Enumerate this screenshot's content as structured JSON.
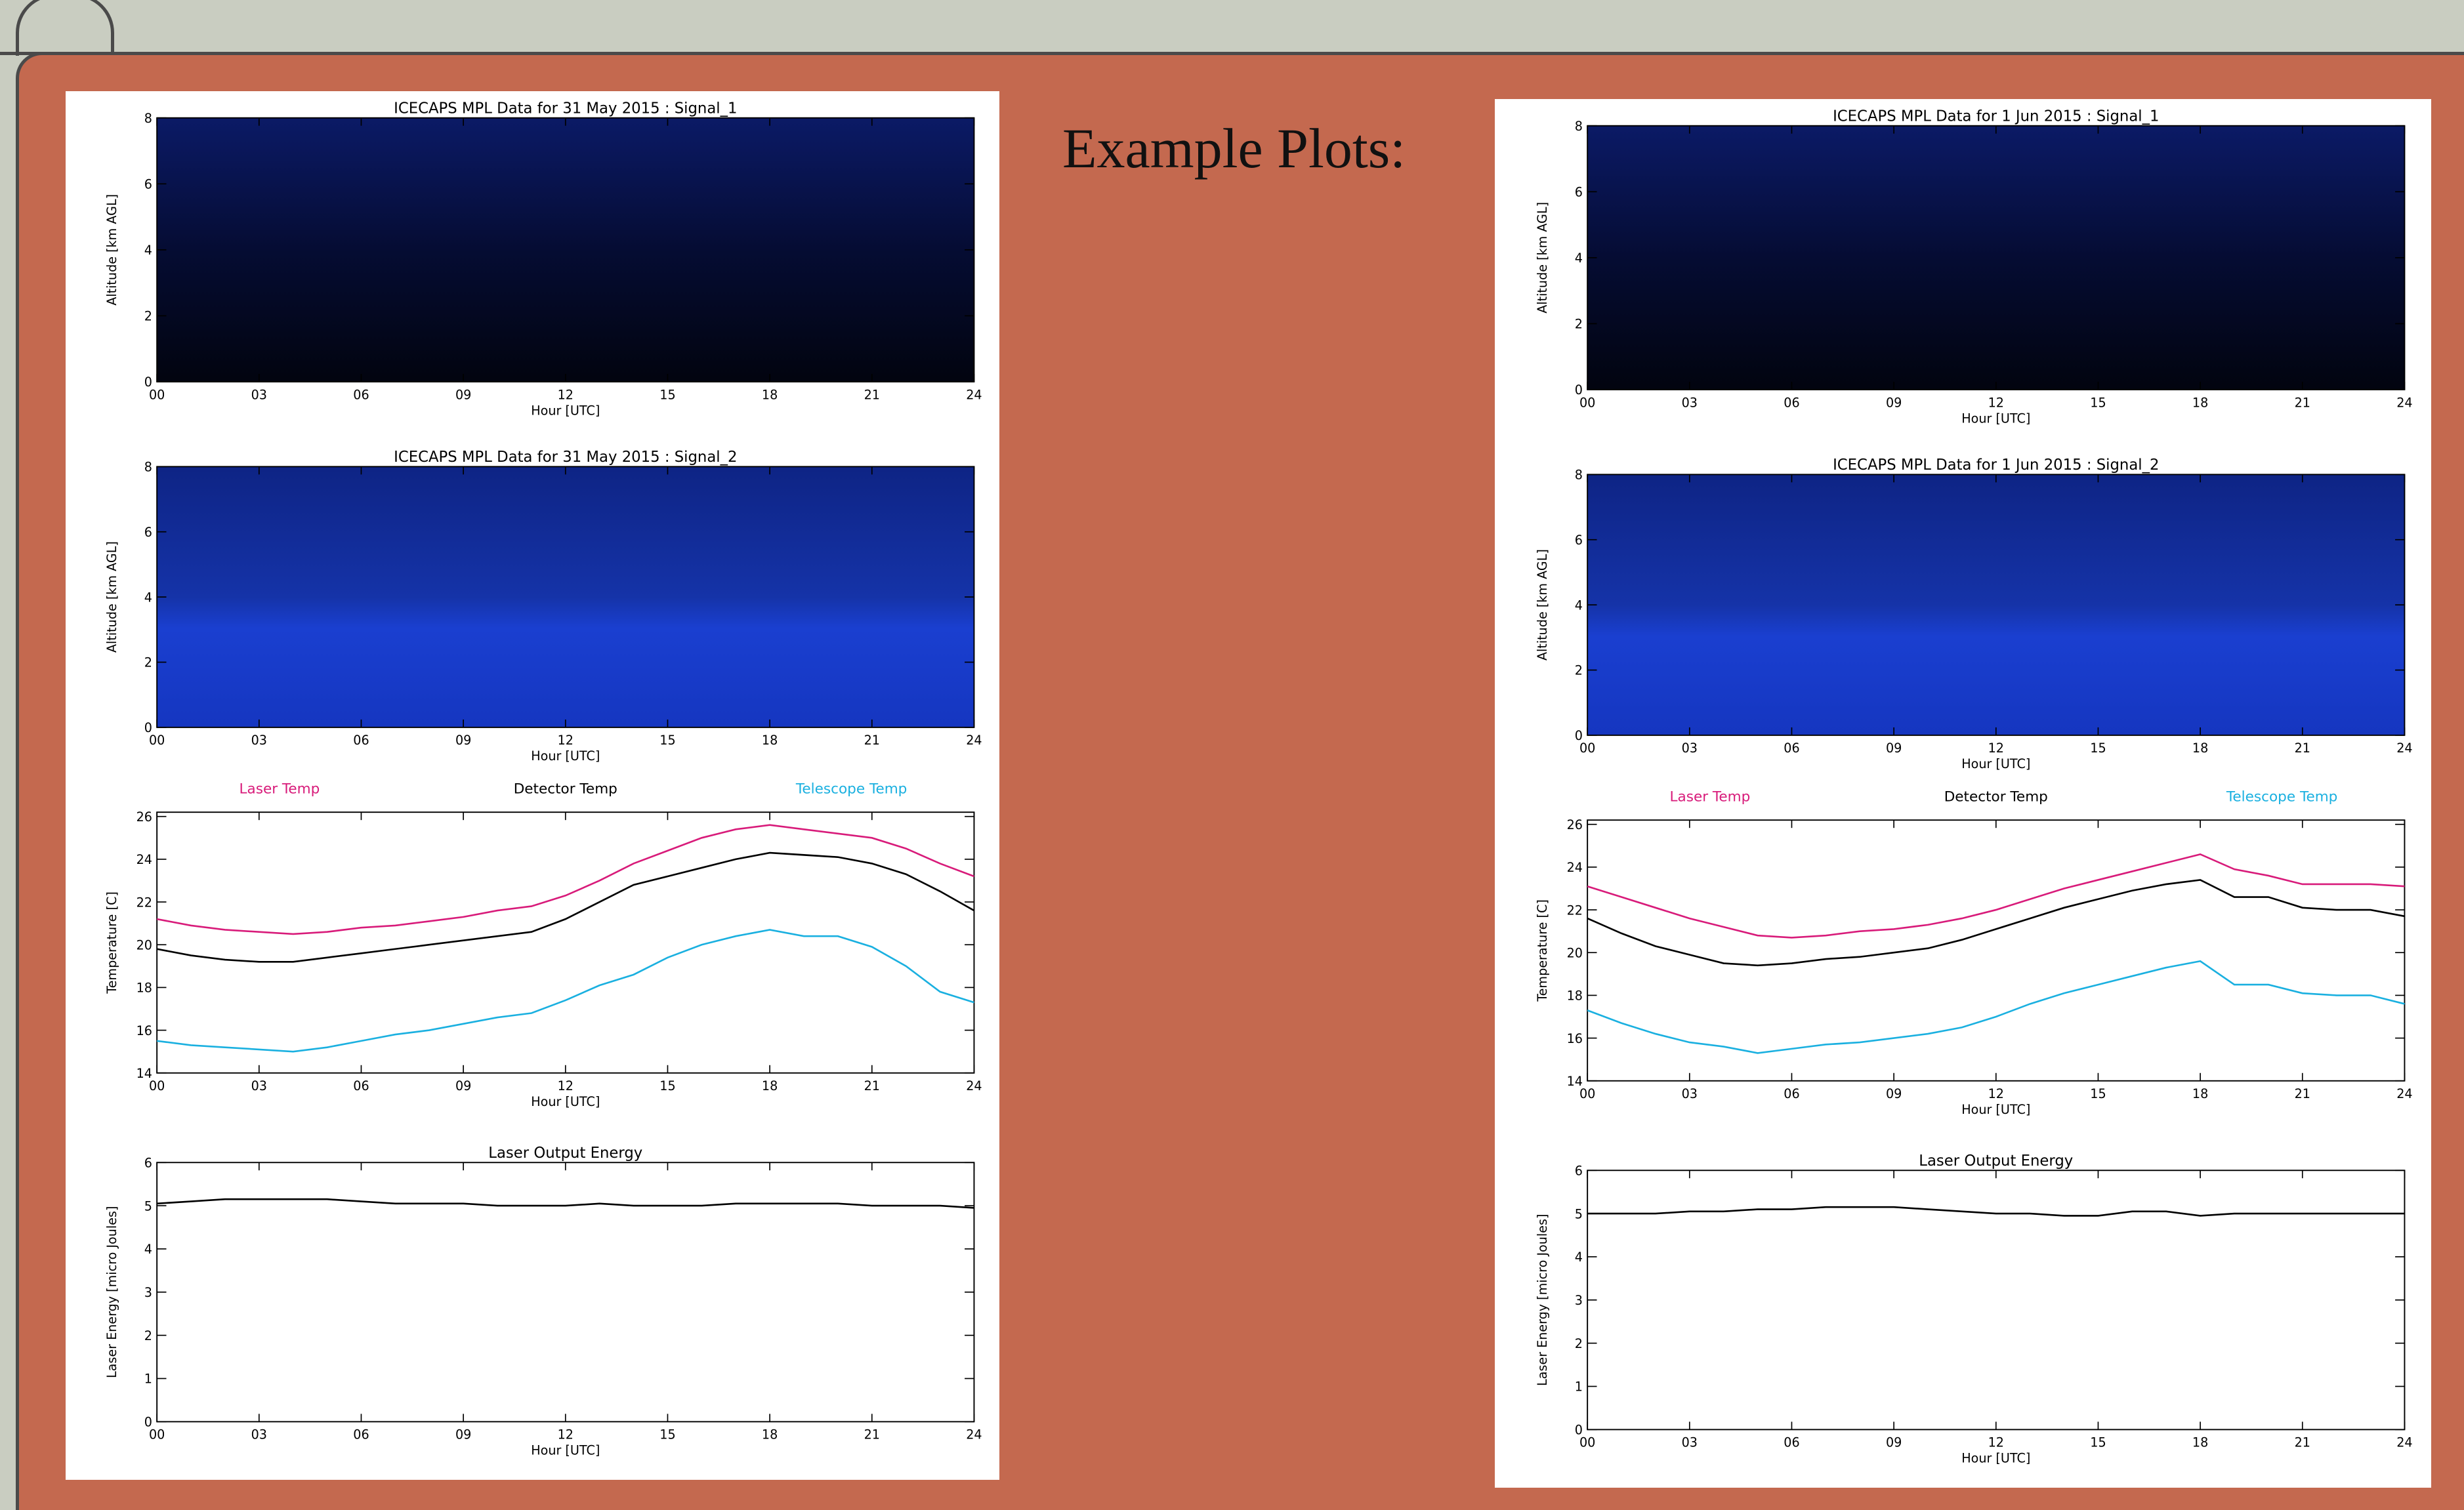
{
  "slide": {
    "heading": "Example Plots:"
  },
  "chart_data": [
    {
      "type": "heatmap",
      "title": "ICECAPS MPL Data for 31 May 2015 :  Signal_1",
      "x_label": "Hour [UTC]",
      "y_label": "Altitude [km AGL]",
      "xlim": [
        0,
        24
      ],
      "xticks": [
        {
          "value": 0,
          "label": "00"
        },
        {
          "value": 3,
          "label": "03"
        },
        {
          "value": 6,
          "label": "06"
        },
        {
          "value": 9,
          "label": "09"
        },
        12,
        15,
        18,
        21,
        24
      ],
      "ylim": [
        0,
        8
      ],
      "yticks": [
        0,
        2,
        4,
        6,
        8
      ]
    },
    {
      "type": "heatmap",
      "title": "ICECAPS MPL Data for 31 May 2015 :  Signal_2",
      "x_label": "Hour [UTC]",
      "y_label": "Altitude [km AGL]",
      "xlim": [
        0,
        24
      ],
      "xticks": [
        {
          "value": 0,
          "label": "00"
        },
        {
          "value": 3,
          "label": "03"
        },
        {
          "value": 6,
          "label": "06"
        },
        {
          "value": 9,
          "label": "09"
        },
        12,
        15,
        18,
        21,
        24
      ],
      "ylim": [
        0,
        8
      ],
      "yticks": [
        0,
        2,
        4,
        6,
        8
      ]
    },
    {
      "type": "line",
      "x_label": "Hour [UTC]",
      "y_label": "Temperature [C]",
      "xlim": [
        0,
        24
      ],
      "xticks": [
        {
          "value": 0,
          "label": "00"
        },
        {
          "value": 3,
          "label": "03"
        },
        {
          "value": 6,
          "label": "06"
        },
        {
          "value": 9,
          "label": "09"
        },
        12,
        15,
        18,
        21,
        24
      ],
      "ylim": [
        14,
        26.2
      ],
      "yticks": [
        14,
        16,
        18,
        20,
        22,
        24,
        26
      ],
      "x": [
        0,
        1,
        2,
        3,
        4,
        5,
        6,
        7,
        8,
        9,
        10,
        11,
        12,
        13,
        14,
        15,
        16,
        17,
        18,
        19,
        20,
        21,
        22,
        23,
        24
      ],
      "series": [
        {
          "name": "Laser Temp",
          "color": "#d81b7a",
          "values": [
            21.2,
            20.9,
            20.7,
            20.6,
            20.5,
            20.6,
            20.8,
            20.9,
            21.1,
            21.3,
            21.6,
            21.8,
            22.3,
            23.0,
            23.8,
            24.4,
            25.0,
            25.4,
            25.6,
            25.4,
            25.2,
            25.0,
            24.5,
            23.8,
            23.2
          ]
        },
        {
          "name": "Detector Temp",
          "color": "#000000",
          "values": [
            19.8,
            19.5,
            19.3,
            19.2,
            19.2,
            19.4,
            19.6,
            19.8,
            20.0,
            20.2,
            20.4,
            20.6,
            21.2,
            22.0,
            22.8,
            23.2,
            23.6,
            24.0,
            24.3,
            24.2,
            24.1,
            23.8,
            23.3,
            22.5,
            21.6
          ]
        },
        {
          "name": "Telescope Temp",
          "color": "#1ab0e0",
          "values": [
            15.5,
            15.3,
            15.2,
            15.1,
            15.0,
            15.2,
            15.5,
            15.8,
            16.0,
            16.3,
            16.6,
            16.8,
            17.4,
            18.1,
            18.6,
            19.4,
            20.0,
            20.4,
            20.7,
            20.4,
            20.4,
            19.9,
            19.0,
            17.8,
            17.3
          ]
        }
      ]
    },
    {
      "type": "line",
      "title": "Laser Output Energy",
      "x_label": "Hour [UTC]",
      "y_label": "Laser Energy [micro Joules]",
      "xlim": [
        0,
        24
      ],
      "xticks": [
        {
          "value": 0,
          "label": "00"
        },
        {
          "value": 3,
          "label": "03"
        },
        {
          "value": 6,
          "label": "06"
        },
        {
          "value": 9,
          "label": "09"
        },
        12,
        15,
        18,
        21,
        24
      ],
      "ylim": [
        0,
        6
      ],
      "yticks": [
        0,
        1,
        2,
        3,
        4,
        5,
        6
      ],
      "x": [
        0,
        1,
        2,
        3,
        4,
        5,
        6,
        7,
        8,
        9,
        10,
        11,
        12,
        13,
        14,
        15,
        16,
        17,
        18,
        19,
        20,
        21,
        22,
        23,
        24
      ],
      "series": [
        {
          "color": "#000000",
          "values": [
            5.05,
            5.1,
            5.15,
            5.15,
            5.15,
            5.15,
            5.1,
            5.05,
            5.05,
            5.05,
            5.0,
            5.0,
            5.0,
            5.05,
            5.0,
            5.0,
            5.0,
            5.05,
            5.05,
            5.05,
            5.05,
            5.0,
            5.0,
            5.0,
            4.95
          ]
        }
      ]
    },
    {
      "type": "heatmap",
      "title": "ICECAPS MPL Data for 1 Jun 2015 :  Signal_1",
      "x_label": "Hour [UTC]",
      "y_label": "Altitude [km AGL]",
      "xlim": [
        0,
        24
      ],
      "xticks": [
        {
          "value": 0,
          "label": "00"
        },
        {
          "value": 3,
          "label": "03"
        },
        {
          "value": 6,
          "label": "06"
        },
        {
          "value": 9,
          "label": "09"
        },
        12,
        15,
        18,
        21,
        24
      ],
      "ylim": [
        0,
        8
      ],
      "yticks": [
        0,
        2,
        4,
        6,
        8
      ]
    },
    {
      "type": "heatmap",
      "title": "ICECAPS MPL Data for 1 Jun 2015 :  Signal_2",
      "x_label": "Hour [UTC]",
      "y_label": "Altitude [km AGL]",
      "xlim": [
        0,
        24
      ],
      "xticks": [
        {
          "value": 0,
          "label": "00"
        },
        {
          "value": 3,
          "label": "03"
        },
        {
          "value": 6,
          "label": "06"
        },
        {
          "value": 9,
          "label": "09"
        },
        12,
        15,
        18,
        21,
        24
      ],
      "ylim": [
        0,
        8
      ],
      "yticks": [
        0,
        2,
        4,
        6,
        8
      ]
    },
    {
      "type": "line",
      "x_label": "Hour [UTC]",
      "y_label": "Temperature [C]",
      "xlim": [
        0,
        24
      ],
      "xticks": [
        {
          "value": 0,
          "label": "00"
        },
        {
          "value": 3,
          "label": "03"
        },
        {
          "value": 6,
          "label": "06"
        },
        {
          "value": 9,
          "label": "09"
        },
        12,
        15,
        18,
        21,
        24
      ],
      "ylim": [
        14,
        26.2
      ],
      "yticks": [
        14,
        16,
        18,
        20,
        22,
        24,
        26
      ],
      "x": [
        0,
        1,
        2,
        3,
        4,
        5,
        6,
        7,
        8,
        9,
        10,
        11,
        12,
        13,
        14,
        15,
        16,
        17,
        18,
        19,
        20,
        21,
        22,
        23,
        24
      ],
      "series": [
        {
          "name": "Laser Temp",
          "color": "#d81b7a",
          "values": [
            23.1,
            22.6,
            22.1,
            21.6,
            21.2,
            20.8,
            20.7,
            20.8,
            21.0,
            21.1,
            21.3,
            21.6,
            22.0,
            22.5,
            23.0,
            23.4,
            23.8,
            24.2,
            24.6,
            23.9,
            23.6,
            23.2,
            23.2,
            23.2,
            23.1
          ]
        },
        {
          "name": "Detector Temp",
          "color": "#000000",
          "values": [
            21.6,
            20.9,
            20.3,
            19.9,
            19.5,
            19.4,
            19.5,
            19.7,
            19.8,
            20.0,
            20.2,
            20.6,
            21.1,
            21.6,
            22.1,
            22.5,
            22.9,
            23.2,
            23.4,
            22.6,
            22.6,
            22.1,
            22.0,
            22.0,
            21.7
          ]
        },
        {
          "name": "Telescope Temp",
          "color": "#1ab0e0",
          "values": [
            17.3,
            16.7,
            16.2,
            15.8,
            15.6,
            15.3,
            15.5,
            15.7,
            15.8,
            16.0,
            16.2,
            16.5,
            17.0,
            17.6,
            18.1,
            18.5,
            18.9,
            19.3,
            19.6,
            18.5,
            18.5,
            18.1,
            18.0,
            18.0,
            17.6
          ]
        }
      ]
    },
    {
      "type": "line",
      "title": "Laser Output Energy",
      "x_label": "Hour [UTC]",
      "y_label": "Laser Energy [micro Joules]",
      "xlim": [
        0,
        24
      ],
      "xticks": [
        {
          "value": 0,
          "label": "00"
        },
        {
          "value": 3,
          "label": "03"
        },
        {
          "value": 6,
          "label": "06"
        },
        {
          "value": 9,
          "label": "09"
        },
        12,
        15,
        18,
        21,
        24
      ],
      "ylim": [
        0,
        6
      ],
      "yticks": [
        0,
        1,
        2,
        3,
        4,
        5,
        6
      ],
      "x": [
        0,
        1,
        2,
        3,
        4,
        5,
        6,
        7,
        8,
        9,
        10,
        11,
        12,
        13,
        14,
        15,
        16,
        17,
        18,
        19,
        20,
        21,
        22,
        23,
        24
      ],
      "series": [
        {
          "color": "#000000",
          "values": [
            5.0,
            5.0,
            5.0,
            5.05,
            5.05,
            5.1,
            5.1,
            5.15,
            5.15,
            5.15,
            5.1,
            5.05,
            5.0,
            5.0,
            4.95,
            4.95,
            5.05,
            5.05,
            4.95,
            5.0,
            5.0,
            5.0,
            5.0,
            5.0,
            5.0
          ]
        }
      ]
    }
  ]
}
